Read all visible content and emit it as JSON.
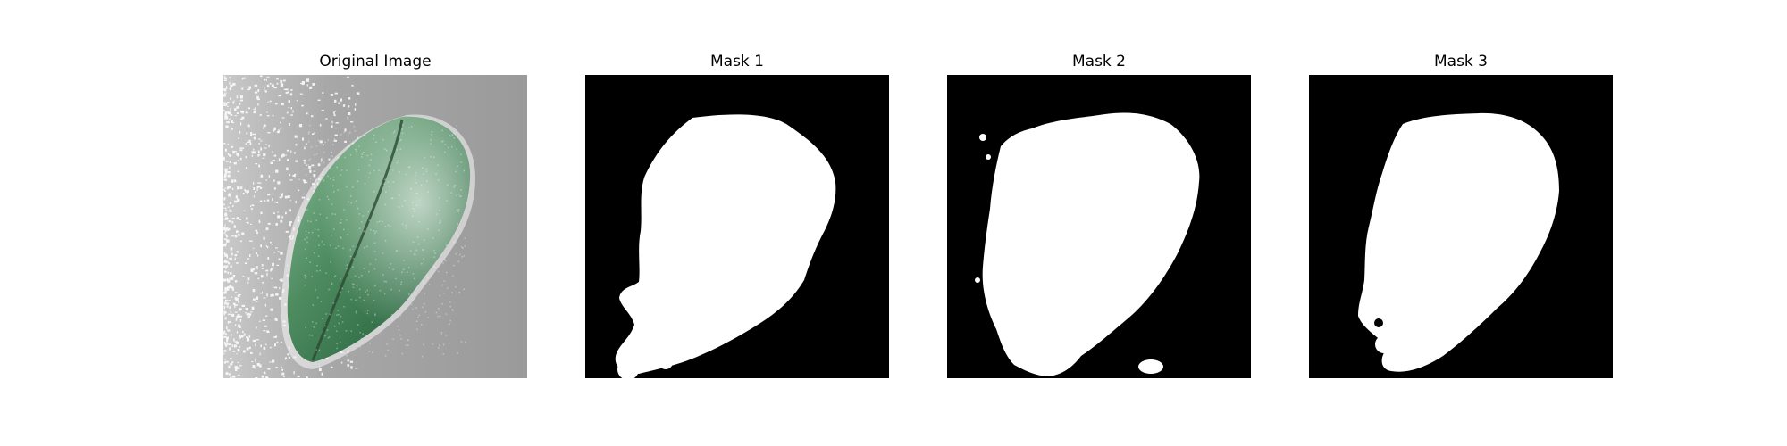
{
  "panels": [
    {
      "id": "original",
      "title": "Original Image"
    },
    {
      "id": "mask1",
      "title": "Mask 1"
    },
    {
      "id": "mask2",
      "title": "Mask 2"
    },
    {
      "id": "mask3",
      "title": "Mask 3"
    }
  ],
  "colors": {
    "background": "#ffffff",
    "mask_background": "#000000",
    "mask_foreground": "#ffffff",
    "photo_background": "#9a9a9a",
    "leaf_dark": "#2f6b45",
    "leaf_light": "#7fae8e"
  },
  "subject": "leaf"
}
